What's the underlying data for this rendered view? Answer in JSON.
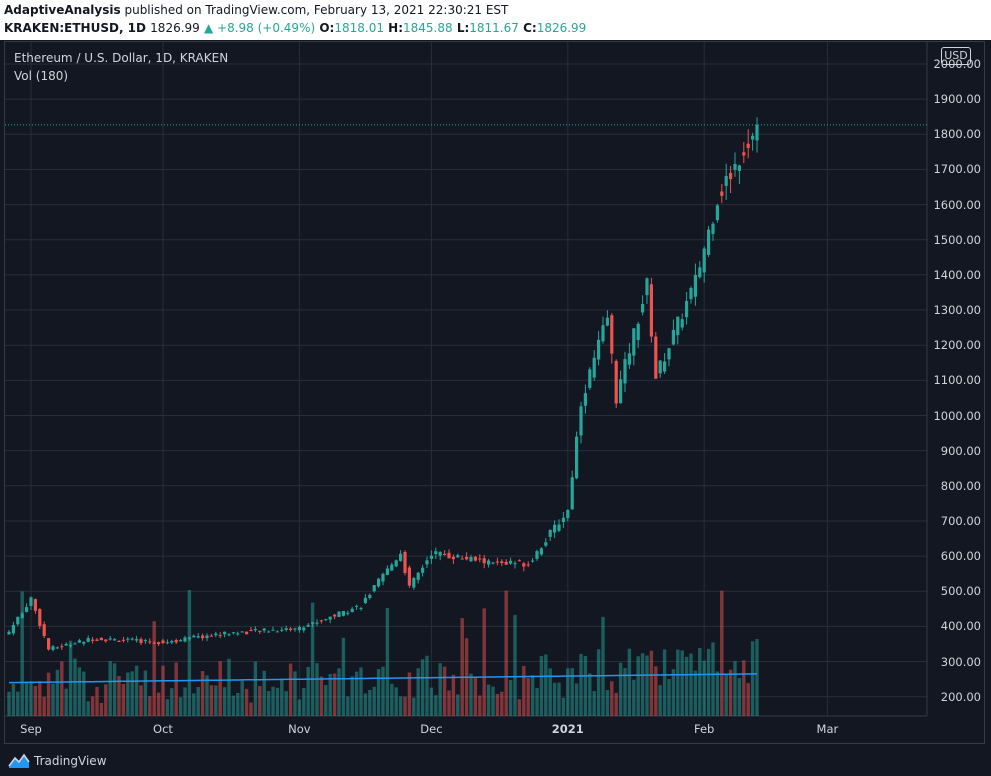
{
  "header": {
    "publisher": "AdaptiveAnalysis",
    "published_text": "published on TradingView.com, February 13, 2021 22:30:21 EST",
    "symbol": "KRAKEN:ETHUSD, 1D",
    "last": "1826.99",
    "change": "▲ +8.98 (+0.49%)",
    "open_label": "O:",
    "open": "1818.01",
    "high_label": "H:",
    "high": "1845.88",
    "low_label": "L:",
    "low": "1811.67",
    "close_label": "C:",
    "close": "1826.99"
  },
  "chart_labels": {
    "instrument": "Ethereum / U.S. Dollar, 1D, KRAKEN",
    "volume": "Vol (180)",
    "currency": "USD"
  },
  "y_axis": [
    "2000.00",
    "1900.00",
    "1800.00",
    "1700.00",
    "1600.00",
    "1500.00",
    "1400.00",
    "1300.00",
    "1200.00",
    "1100.00",
    "1000.00",
    "900.00",
    "800.00",
    "700.00",
    "600.00",
    "500.00",
    "400.00",
    "300.00",
    "200.00"
  ],
  "x_axis": [
    {
      "label": "Sep",
      "bold": false
    },
    {
      "label": "Oct",
      "bold": false
    },
    {
      "label": "Nov",
      "bold": false
    },
    {
      "label": "Dec",
      "bold": false
    },
    {
      "label": "2021",
      "bold": true
    },
    {
      "label": "Feb",
      "bold": false
    },
    {
      "label": "Mar",
      "bold": false
    }
  ],
  "footer": {
    "brand": "TradingView"
  },
  "colors": {
    "up": "#26a69a",
    "down": "#ef5350",
    "ma": "#2196f3",
    "background": "#131722",
    "grid": "#2a2e39"
  },
  "chart_data": {
    "type": "candlestick",
    "title": "Ethereum / U.S. Dollar, 1D, KRAKEN",
    "ylim": [
      150,
      2030
    ],
    "last_price": 1826.99,
    "series": [
      {
        "name": "price",
        "key_points": [
          {
            "x": "2020-08-27",
            "close": 385
          },
          {
            "x": "2020-09-01",
            "close": 480
          },
          {
            "x": "2020-09-05",
            "close": 335
          },
          {
            "x": "2020-09-15",
            "close": 365
          },
          {
            "x": "2020-10-01",
            "close": 355
          },
          {
            "x": "2020-10-15",
            "close": 380
          },
          {
            "x": "2020-11-01",
            "close": 395
          },
          {
            "x": "2020-11-15",
            "close": 460
          },
          {
            "x": "2020-11-24",
            "close": 610
          },
          {
            "x": "2020-11-26",
            "close": 510
          },
          {
            "x": "2020-12-01",
            "close": 610
          },
          {
            "x": "2020-12-15",
            "close": 580
          },
          {
            "x": "2020-12-23",
            "close": 580
          },
          {
            "x": "2021-01-01",
            "close": 730
          },
          {
            "x": "2021-01-04",
            "close": 1040
          },
          {
            "x": "2021-01-10",
            "close": 1280
          },
          {
            "x": "2021-01-12",
            "close": 1050
          },
          {
            "x": "2021-01-19",
            "close": 1370
          },
          {
            "x": "2021-01-21",
            "close": 1110
          },
          {
            "x": "2021-01-30",
            "close": 1380
          },
          {
            "x": "2021-02-04",
            "close": 1620
          },
          {
            "x": "2021-02-13",
            "close": 1826.99
          }
        ]
      },
      {
        "name": "Vol (180)",
        "ma_start": 240,
        "ma_end": 265
      }
    ]
  }
}
